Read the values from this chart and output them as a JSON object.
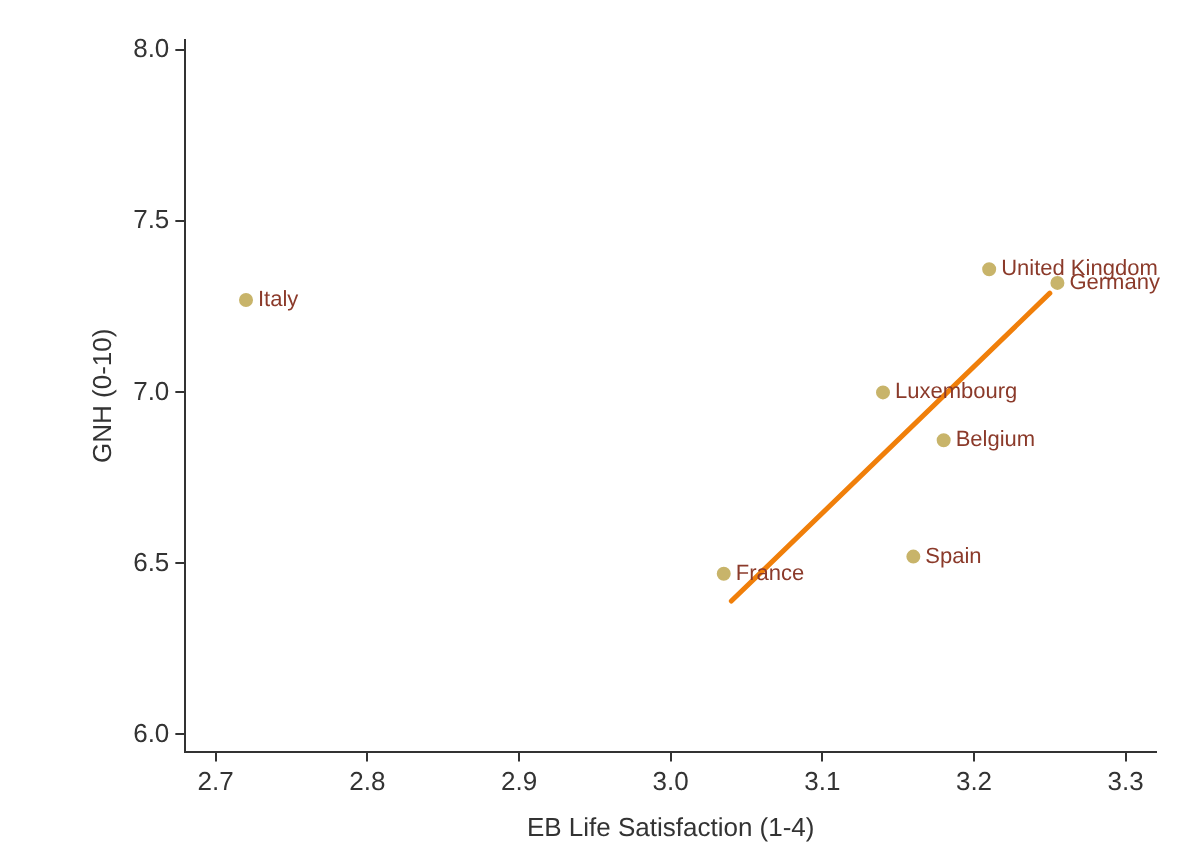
{
  "chart_data": {
    "type": "scatter",
    "xlabel": "EB Life Satisfaction (1-4)",
    "ylabel": "GNH (0-10)",
    "xlim": [
      2.68,
      3.32
    ],
    "ylim": [
      5.95,
      8.03
    ],
    "xticks": [
      2.7,
      2.8,
      2.9,
      {
        "value": 3,
        "label": "3.0"
      },
      3.1,
      3.2,
      3.3
    ],
    "yticks": [
      {
        "value": 6,
        "label": "6.0"
      },
      6.5,
      {
        "value": 7,
        "label": "7.0"
      },
      7.5,
      {
        "value": 8,
        "label": "8.0"
      }
    ],
    "grid": false,
    "legend": false,
    "marker": "circle",
    "series": [
      {
        "type": "scatter",
        "color": "#c8b46a",
        "x": [
          2.72,
          3.21,
          3.255,
          3.14,
          3.18,
          3.16,
          3.035
        ],
        "values": [
          7.27,
          7.36,
          7.32,
          7.0,
          6.86,
          6.52,
          6.47
        ]
      },
      {
        "type": "line",
        "color": "#f07f0a",
        "x": [
          3.04,
          3.25
        ],
        "values": [
          6.39,
          7.29
        ],
        "marker": "none"
      }
    ],
    "annotations": [
      {
        "text": "Italy",
        "x": 2.72,
        "y": 7.27
      },
      {
        "text": "United Kingdom",
        "x": 3.21,
        "y": 7.36
      },
      {
        "text": "Germany",
        "x": 3.255,
        "y": 7.32
      },
      {
        "text": "Luxembourg",
        "x": 3.14,
        "y": 7.0
      },
      {
        "text": "Belgium",
        "x": 3.18,
        "y": 6.86
      },
      {
        "text": "Spain",
        "x": 3.16,
        "y": 6.52
      },
      {
        "text": "France",
        "x": 3.035,
        "y": 6.47
      }
    ]
  }
}
